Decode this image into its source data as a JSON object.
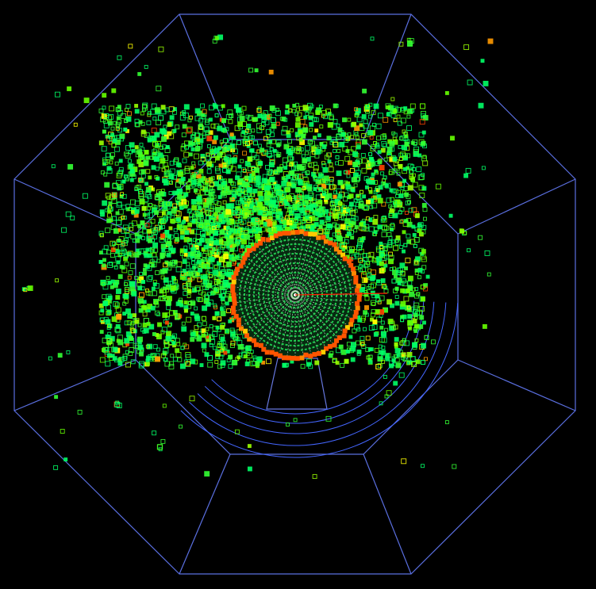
{
  "scene": {
    "kind": "particle detector event display",
    "background_color": "#000000",
    "detector_outline_color": "#5a6fe0",
    "detector_outline_shape": "octagon",
    "hit_palette": [
      "#00ff66",
      "#33ff33",
      "#66ff00",
      "#99ff00",
      "#ccff00",
      "#ffff00",
      "#ff9900",
      "#ff4400"
    ],
    "central_disc": {
      "outer_ring_color": "#ff5500",
      "inner_hit_color": "#22dd55",
      "spoke_color": "#ffffff",
      "track_color": "#ff2200"
    },
    "arc_color": "#4466ff"
  }
}
